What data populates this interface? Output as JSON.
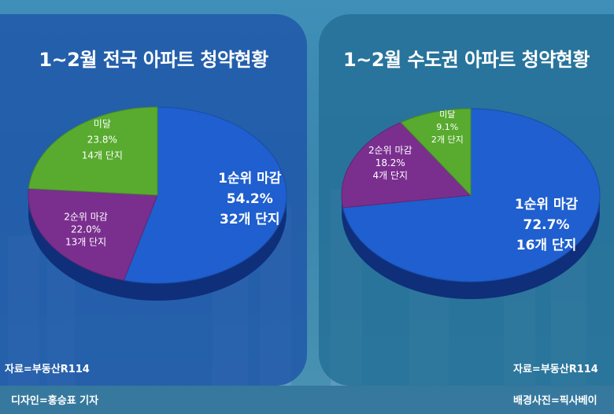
{
  "chart_data": [
    {
      "type": "pie",
      "title": "1~2월 전국 아파트 청약현황",
      "slices": [
        {
          "label": "1순위 마감",
          "percent_text": "54.2%",
          "count_text": "32개 단지",
          "value": 54.2,
          "color": "#1f5fcf"
        },
        {
          "label": "2순위 마감",
          "percent_text": "22.0%",
          "count_text": "13개 단지",
          "value": 22.0,
          "color": "#7a2f8f"
        },
        {
          "label": "미달",
          "percent_text": "23.8%",
          "count_text": "14개 단지",
          "value": 23.8,
          "color": "#58ab2f"
        }
      ],
      "source": "자료=부동산R114"
    },
    {
      "type": "pie",
      "title": "1~2월 수도권 아파트 청약현황",
      "slices": [
        {
          "label": "1순위 마감",
          "percent_text": "72.7%",
          "count_text": "16개 단지",
          "value": 72.7,
          "color": "#1f5fcf"
        },
        {
          "label": "2순위 마감",
          "percent_text": "18.2%",
          "count_text": "4개 단지",
          "value": 18.2,
          "color": "#7a2f8f"
        },
        {
          "label": "미달",
          "percent_text": "9.1%",
          "count_text": "2개 단지",
          "value": 9.1,
          "color": "#58ab2f"
        }
      ],
      "source": "자료=부동산R114"
    }
  ],
  "footer": {
    "designer": "디자인=홍승표 기자",
    "background_credit": "배경사진=픽사베이"
  }
}
